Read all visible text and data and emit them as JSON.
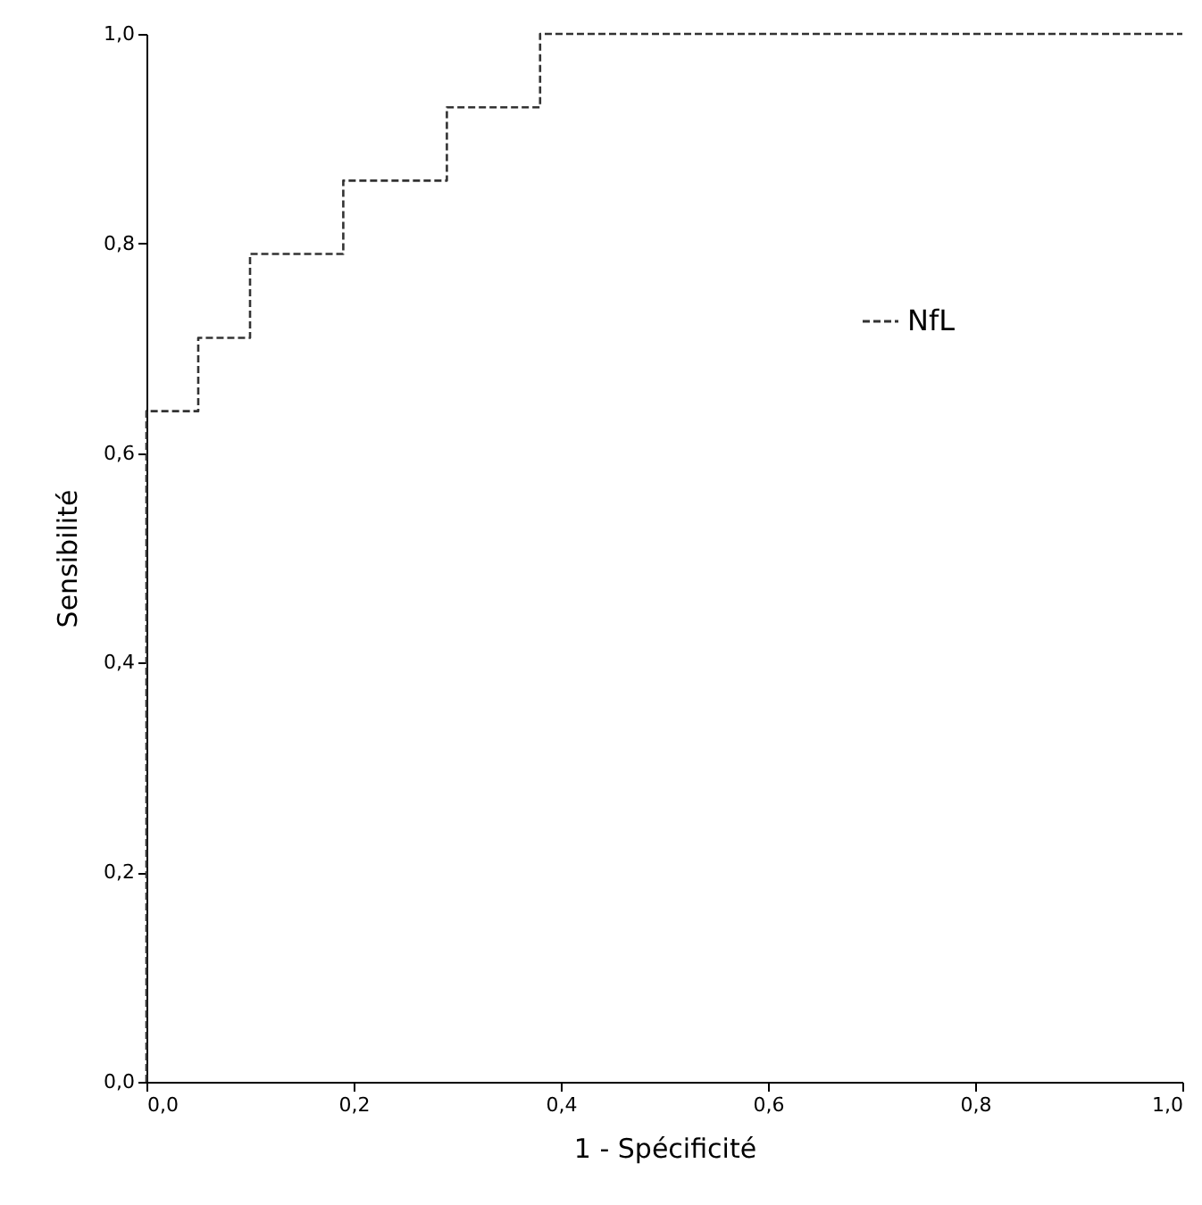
{
  "chart_data": {
    "type": "line",
    "xlabel": "1 - Spécificité",
    "ylabel": "Sensibilité",
    "series": [
      {
        "name": "NfL",
        "color": "#333333",
        "x": [
          0,
          0,
          0.05,
          0.05,
          0.1,
          0.1,
          0.19,
          0.19,
          0.29,
          0.29,
          0.38,
          0.38,
          1
        ],
        "values": [
          0,
          0.64,
          0.64,
          0.71,
          0.71,
          0.79,
          0.79,
          0.86,
          0.86,
          0.93,
          0.93,
          1,
          1
        ]
      }
    ],
    "xlim": [
      0,
      1
    ],
    "ylim": [
      0,
      1
    ],
    "xticks": [
      {
        "value": 0,
        "label": "0,0"
      },
      {
        "value": 0.2,
        "label": "0,2"
      },
      {
        "value": 0.4,
        "label": "0,4"
      },
      {
        "value": 0.6,
        "label": "0,6"
      },
      {
        "value": 0.8,
        "label": "0,8"
      },
      {
        "value": 1,
        "label": "1,0"
      }
    ],
    "yticks": [
      {
        "value": 0,
        "label": "0,0"
      },
      {
        "value": 0.2,
        "label": "0,2"
      },
      {
        "value": 0.4,
        "label": "0,4"
      },
      {
        "value": 0.6,
        "label": "0,6"
      },
      {
        "value": 0.8,
        "label": "0,8"
      },
      {
        "value": 1,
        "label": "1,0"
      }
    ],
    "line_style": "dashed",
    "legend": "right",
    "grid": false
  }
}
